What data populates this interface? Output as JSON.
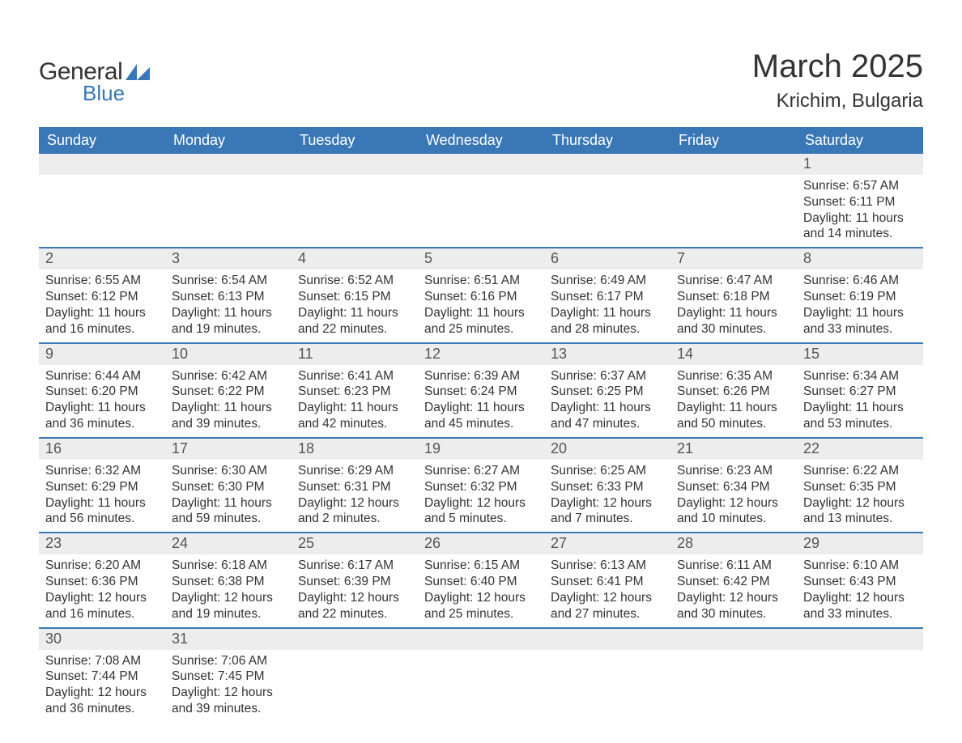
{
  "logo": {
    "text_general": "General",
    "text_blue": "Blue",
    "flag_color": "#3a77b7",
    "text_general_color": "#333333"
  },
  "title": {
    "month": "March 2025",
    "location": "Krichim, Bulgaria",
    "month_fontsize": 40,
    "location_fontsize": 24
  },
  "colors": {
    "header_bg": "#3a77b7",
    "header_text": "#ffffff",
    "daynum_bg": "#ededed",
    "daynum_text": "#555555",
    "body_text": "#333333",
    "row_border": "#3a77b7",
    "page_bg": "#ffffff"
  },
  "weekdays": [
    "Sunday",
    "Monday",
    "Tuesday",
    "Wednesday",
    "Thursday",
    "Friday",
    "Saturday"
  ],
  "labels": {
    "sunrise_prefix": "Sunrise: ",
    "sunset_prefix": "Sunset: ",
    "daylight_prefix": "Daylight: "
  },
  "weeks": [
    [
      {
        "empty": true
      },
      {
        "empty": true
      },
      {
        "empty": true
      },
      {
        "empty": true
      },
      {
        "empty": true
      },
      {
        "empty": true
      },
      {
        "day": "1",
        "sunrise": "6:57 AM",
        "sunset": "6:11 PM",
        "daylight": "11 hours and 14 minutes."
      }
    ],
    [
      {
        "day": "2",
        "sunrise": "6:55 AM",
        "sunset": "6:12 PM",
        "daylight": "11 hours and 16 minutes."
      },
      {
        "day": "3",
        "sunrise": "6:54 AM",
        "sunset": "6:13 PM",
        "daylight": "11 hours and 19 minutes."
      },
      {
        "day": "4",
        "sunrise": "6:52 AM",
        "sunset": "6:15 PM",
        "daylight": "11 hours and 22 minutes."
      },
      {
        "day": "5",
        "sunrise": "6:51 AM",
        "sunset": "6:16 PM",
        "daylight": "11 hours and 25 minutes."
      },
      {
        "day": "6",
        "sunrise": "6:49 AM",
        "sunset": "6:17 PM",
        "daylight": "11 hours and 28 minutes."
      },
      {
        "day": "7",
        "sunrise": "6:47 AM",
        "sunset": "6:18 PM",
        "daylight": "11 hours and 30 minutes."
      },
      {
        "day": "8",
        "sunrise": "6:46 AM",
        "sunset": "6:19 PM",
        "daylight": "11 hours and 33 minutes."
      }
    ],
    [
      {
        "day": "9",
        "sunrise": "6:44 AM",
        "sunset": "6:20 PM",
        "daylight": "11 hours and 36 minutes."
      },
      {
        "day": "10",
        "sunrise": "6:42 AM",
        "sunset": "6:22 PM",
        "daylight": "11 hours and 39 minutes."
      },
      {
        "day": "11",
        "sunrise": "6:41 AM",
        "sunset": "6:23 PM",
        "daylight": "11 hours and 42 minutes."
      },
      {
        "day": "12",
        "sunrise": "6:39 AM",
        "sunset": "6:24 PM",
        "daylight": "11 hours and 45 minutes."
      },
      {
        "day": "13",
        "sunrise": "6:37 AM",
        "sunset": "6:25 PM",
        "daylight": "11 hours and 47 minutes."
      },
      {
        "day": "14",
        "sunrise": "6:35 AM",
        "sunset": "6:26 PM",
        "daylight": "11 hours and 50 minutes."
      },
      {
        "day": "15",
        "sunrise": "6:34 AM",
        "sunset": "6:27 PM",
        "daylight": "11 hours and 53 minutes."
      }
    ],
    [
      {
        "day": "16",
        "sunrise": "6:32 AM",
        "sunset": "6:29 PM",
        "daylight": "11 hours and 56 minutes."
      },
      {
        "day": "17",
        "sunrise": "6:30 AM",
        "sunset": "6:30 PM",
        "daylight": "11 hours and 59 minutes."
      },
      {
        "day": "18",
        "sunrise": "6:29 AM",
        "sunset": "6:31 PM",
        "daylight": "12 hours and 2 minutes."
      },
      {
        "day": "19",
        "sunrise": "6:27 AM",
        "sunset": "6:32 PM",
        "daylight": "12 hours and 5 minutes."
      },
      {
        "day": "20",
        "sunrise": "6:25 AM",
        "sunset": "6:33 PM",
        "daylight": "12 hours and 7 minutes."
      },
      {
        "day": "21",
        "sunrise": "6:23 AM",
        "sunset": "6:34 PM",
        "daylight": "12 hours and 10 minutes."
      },
      {
        "day": "22",
        "sunrise": "6:22 AM",
        "sunset": "6:35 PM",
        "daylight": "12 hours and 13 minutes."
      }
    ],
    [
      {
        "day": "23",
        "sunrise": "6:20 AM",
        "sunset": "6:36 PM",
        "daylight": "12 hours and 16 minutes."
      },
      {
        "day": "24",
        "sunrise": "6:18 AM",
        "sunset": "6:38 PM",
        "daylight": "12 hours and 19 minutes."
      },
      {
        "day": "25",
        "sunrise": "6:17 AM",
        "sunset": "6:39 PM",
        "daylight": "12 hours and 22 minutes."
      },
      {
        "day": "26",
        "sunrise": "6:15 AM",
        "sunset": "6:40 PM",
        "daylight": "12 hours and 25 minutes."
      },
      {
        "day": "27",
        "sunrise": "6:13 AM",
        "sunset": "6:41 PM",
        "daylight": "12 hours and 27 minutes."
      },
      {
        "day": "28",
        "sunrise": "6:11 AM",
        "sunset": "6:42 PM",
        "daylight": "12 hours and 30 minutes."
      },
      {
        "day": "29",
        "sunrise": "6:10 AM",
        "sunset": "6:43 PM",
        "daylight": "12 hours and 33 minutes."
      }
    ],
    [
      {
        "day": "30",
        "sunrise": "7:08 AM",
        "sunset": "7:44 PM",
        "daylight": "12 hours and 36 minutes."
      },
      {
        "day": "31",
        "sunrise": "7:06 AM",
        "sunset": "7:45 PM",
        "daylight": "12 hours and 39 minutes."
      },
      {
        "empty": true
      },
      {
        "empty": true
      },
      {
        "empty": true
      },
      {
        "empty": true
      },
      {
        "empty": true
      }
    ]
  ]
}
